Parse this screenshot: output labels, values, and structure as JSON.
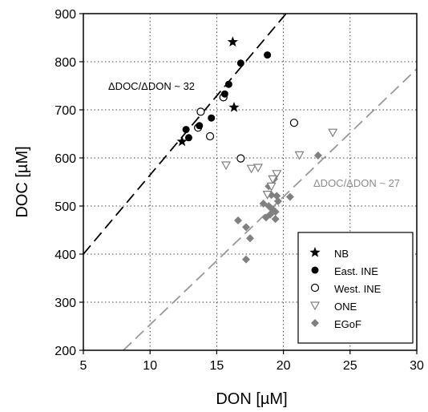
{
  "chart_data": {
    "type": "scatter",
    "xlabel": "DON [µM]",
    "ylabel": "DOC [µM]",
    "xlim": [
      5,
      30
    ],
    "ylim": [
      200,
      900
    ],
    "xticks": [
      5,
      10,
      15,
      20,
      25,
      30
    ],
    "yticks": [
      200,
      300,
      400,
      500,
      600,
      700,
      800,
      900
    ],
    "grid": true,
    "legend_position": "bottom-right",
    "series": [
      {
        "name": "NB",
        "marker": "star",
        "color": "#000000",
        "points": [
          [
            16.2,
            841
          ],
          [
            16.3,
            705
          ],
          [
            12.4,
            634
          ]
        ]
      },
      {
        "name": "East. INE",
        "marker": "circle-filled",
        "color": "#000000",
        "points": [
          [
            16.8,
            797
          ],
          [
            18.8,
            814
          ],
          [
            15.9,
            753
          ],
          [
            15.6,
            733
          ],
          [
            14.6,
            683
          ],
          [
            12.7,
            659
          ],
          [
            12.9,
            642
          ],
          [
            13.7,
            667
          ]
        ]
      },
      {
        "name": "West. INE",
        "marker": "circle-open",
        "color": "#000000",
        "points": [
          [
            13.8,
            696
          ],
          [
            15.5,
            726
          ],
          [
            14.5,
            645
          ],
          [
            13.6,
            663
          ],
          [
            16.8,
            599
          ],
          [
            20.8,
            673
          ]
        ]
      },
      {
        "name": "ONE",
        "marker": "triangle-down-open",
        "color": "#808080",
        "points": [
          [
            15.7,
            585
          ],
          [
            17.6,
            578
          ],
          [
            18.1,
            580
          ],
          [
            19.5,
            567
          ],
          [
            19.2,
            556
          ],
          [
            21.2,
            606
          ],
          [
            23.7,
            653
          ],
          [
            19.1,
            541
          ],
          [
            18.8,
            524
          ]
        ]
      },
      {
        "name": "EGoF",
        "marker": "diamond-filled",
        "color": "#808080",
        "points": [
          [
            16.6,
            470
          ],
          [
            17.2,
            456
          ],
          [
            17.5,
            433
          ],
          [
            17.2,
            389
          ],
          [
            18.9,
            541
          ],
          [
            19.3,
            556
          ],
          [
            19.1,
            523
          ],
          [
            19.5,
            521
          ],
          [
            18.5,
            505
          ],
          [
            18.9,
            500
          ],
          [
            19.2,
            493
          ],
          [
            19.4,
            488
          ],
          [
            18.7,
            476
          ],
          [
            19.4,
            473
          ],
          [
            20.5,
            519
          ],
          [
            22.6,
            605
          ],
          [
            19.6,
            510
          ],
          [
            19.0,
            482
          ]
        ]
      }
    ],
    "fit_lines": [
      {
        "label": "ΔDOC/ΔDON ~ 32",
        "color": "#000000",
        "dash": "long",
        "from": [
          5,
          400
        ],
        "to": [
          20.2,
          900
        ]
      },
      {
        "label": "ΔDOC/ΔDON ~ 27",
        "color": "#999999",
        "dash": "long",
        "from": [
          8,
          200
        ],
        "to": [
          30,
          785
        ]
      }
    ]
  }
}
